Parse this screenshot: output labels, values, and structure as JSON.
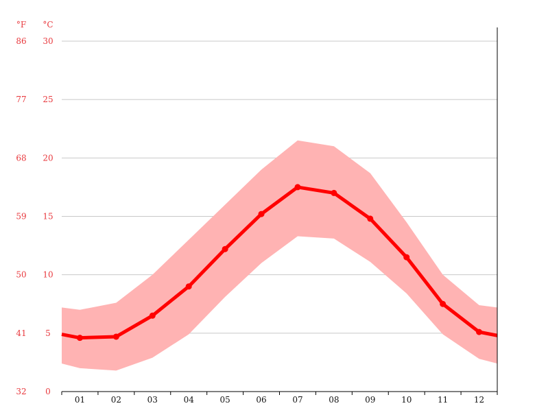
{
  "chart_data": {
    "type": "line",
    "title": "",
    "xlabel": "",
    "ylabel": "",
    "units": {
      "left": "°F",
      "right": "°C"
    },
    "categories": [
      "01",
      "02",
      "03",
      "04",
      "05",
      "06",
      "07",
      "08",
      "09",
      "10",
      "11",
      "12"
    ],
    "y_ticks_c": [
      0,
      5,
      10,
      15,
      20,
      25,
      30
    ],
    "y_ticks_f": [
      32,
      41,
      50,
      59,
      68,
      77,
      86
    ],
    "ylim": [
      0,
      30
    ],
    "grid": true,
    "series": [
      {
        "role": "mean",
        "values": [
          4.6,
          4.7,
          6.5,
          9.0,
          12.2,
          15.2,
          17.5,
          17.0,
          14.8,
          11.5,
          7.5,
          5.1
        ]
      },
      {
        "role": "max",
        "values": [
          7.0,
          7.6,
          10.0,
          13.0,
          16.0,
          19.0,
          21.5,
          21.0,
          18.7,
          14.5,
          10.0,
          7.4
        ]
      },
      {
        "role": "min",
        "values": [
          2.0,
          1.8,
          2.9,
          4.9,
          8.1,
          11.0,
          13.3,
          13.1,
          11.1,
          8.4,
          4.9,
          2.8
        ]
      }
    ],
    "edge_values": {
      "mean": {
        "left": 4.9,
        "right": 4.8
      },
      "max": {
        "left": 7.2,
        "right": 7.2
      },
      "min": {
        "left": 2.4,
        "right": 2.4
      }
    },
    "colors": {
      "line": "#ff0000",
      "band": "#ffb3b3",
      "labels": "#e8383d",
      "grid": "#c8c8c8"
    }
  }
}
